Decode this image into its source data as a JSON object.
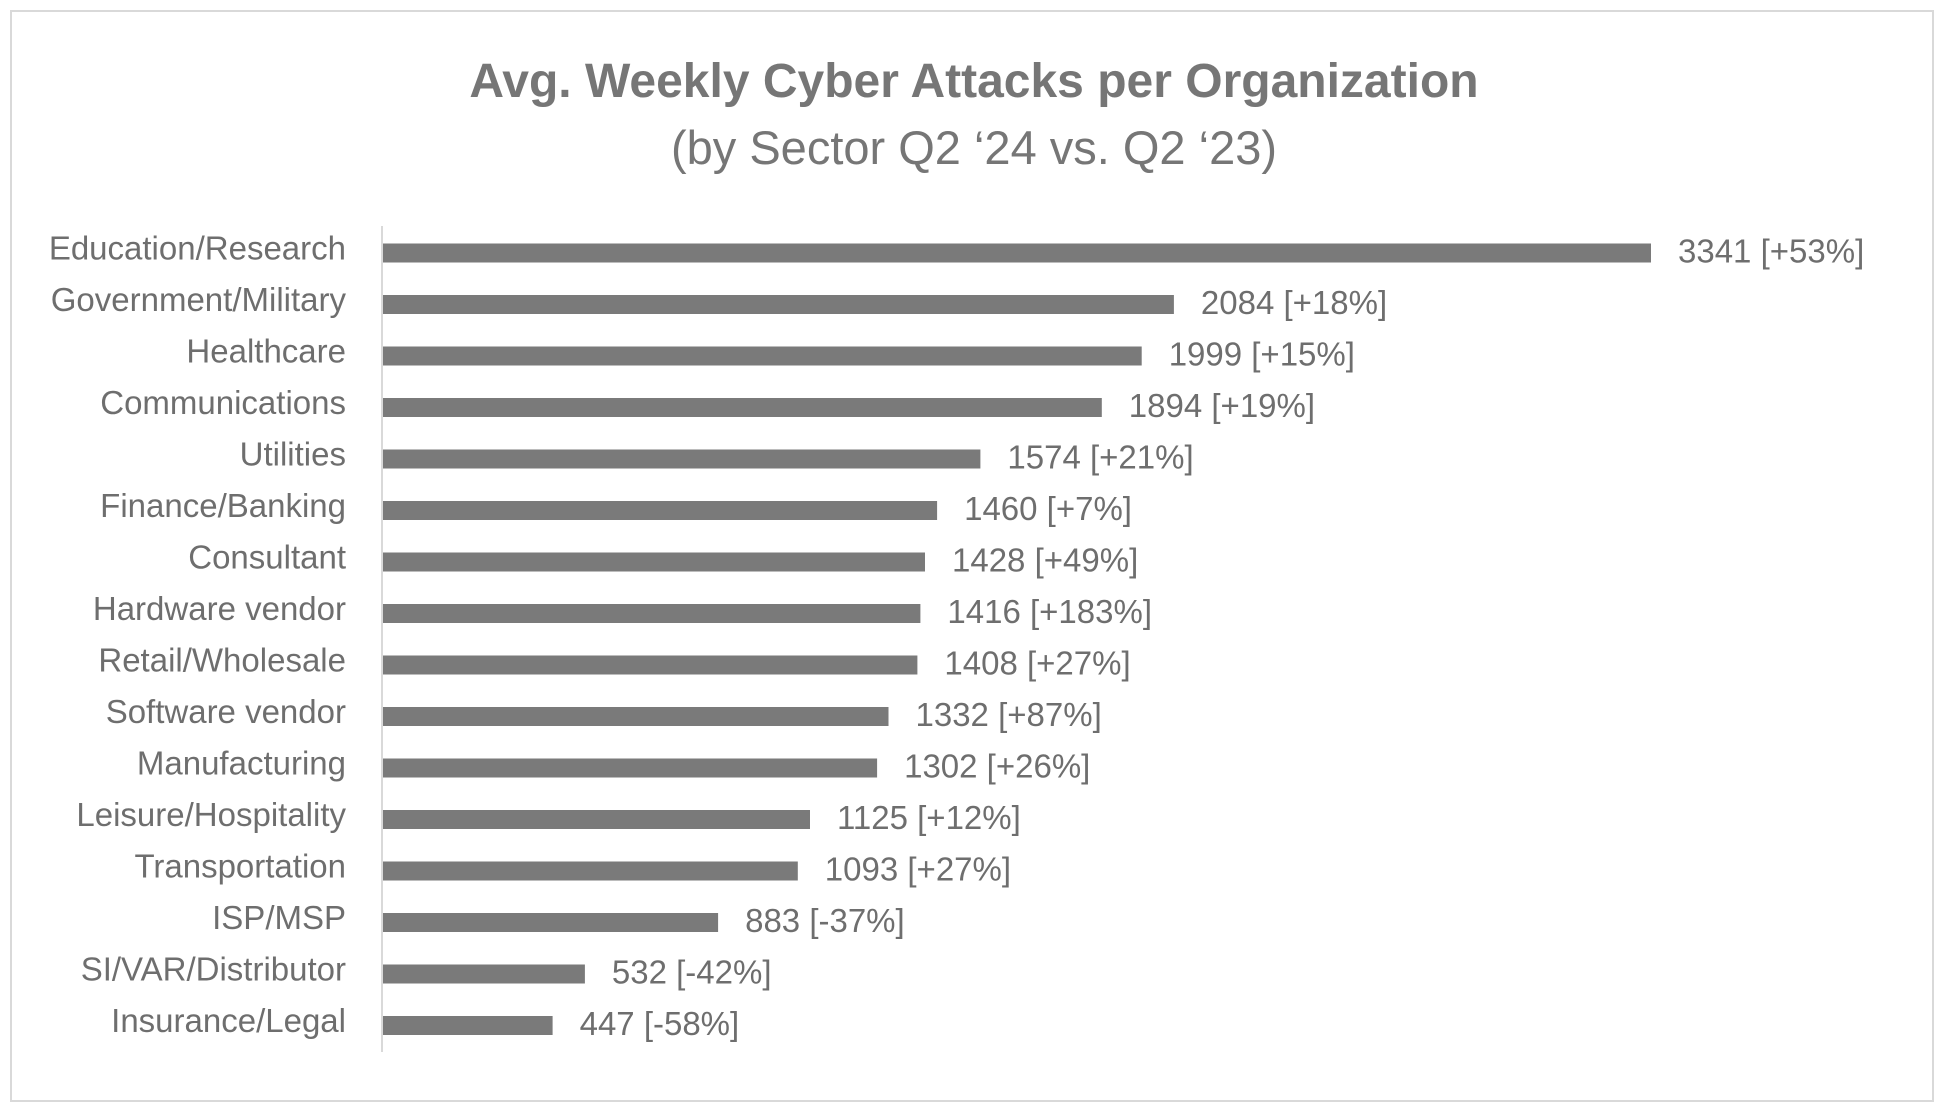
{
  "chart_data": {
    "type": "bar",
    "orientation": "horizontal",
    "title": "Avg. Weekly Cyber Attacks per Organization",
    "subtitle": "(by Sector Q2 ‘24 vs. Q2 ‘23)",
    "xlabel": "",
    "ylabel": "",
    "grid": false,
    "legend": "none",
    "xlim": [
      0,
      3341
    ],
    "categories": [
      "Education/Research",
      "Government/Military",
      "Healthcare",
      "Communications",
      "Utilities",
      "Finance/Banking",
      "Consultant",
      "Hardware vendor",
      "Retail/Wholesale",
      "Software vendor",
      "Manufacturing",
      "Leisure/Hospitality",
      "Transportation",
      "ISP/MSP",
      "SI/VAR/Distributor",
      "Insurance/Legal"
    ],
    "values": [
      3341,
      2084,
      1999,
      1894,
      1574,
      1460,
      1428,
      1416,
      1408,
      1332,
      1302,
      1125,
      1093,
      883,
      532,
      447
    ],
    "data_labels": [
      "3341 [+53%]",
      "2084 [+18%]",
      "1999 [+15%]",
      "1894 [+19%]",
      "1574 [+21%]",
      "1460 [+7%]",
      "1428 [+49%]",
      "1416 [+183%]",
      "1408 [+27%]",
      "1332 [+87%]",
      "1302 [+26%]",
      "1125 [+12%]",
      "1093 [+27%]",
      "883 [-37%]",
      "532 [-42%]",
      "447 [-58%]"
    ],
    "colors": {
      "bar": "#7a7a7a",
      "axis": "#d9d9d9",
      "text": "#6e6e6e",
      "title": "#767676",
      "border": "#d9d9d9"
    }
  }
}
